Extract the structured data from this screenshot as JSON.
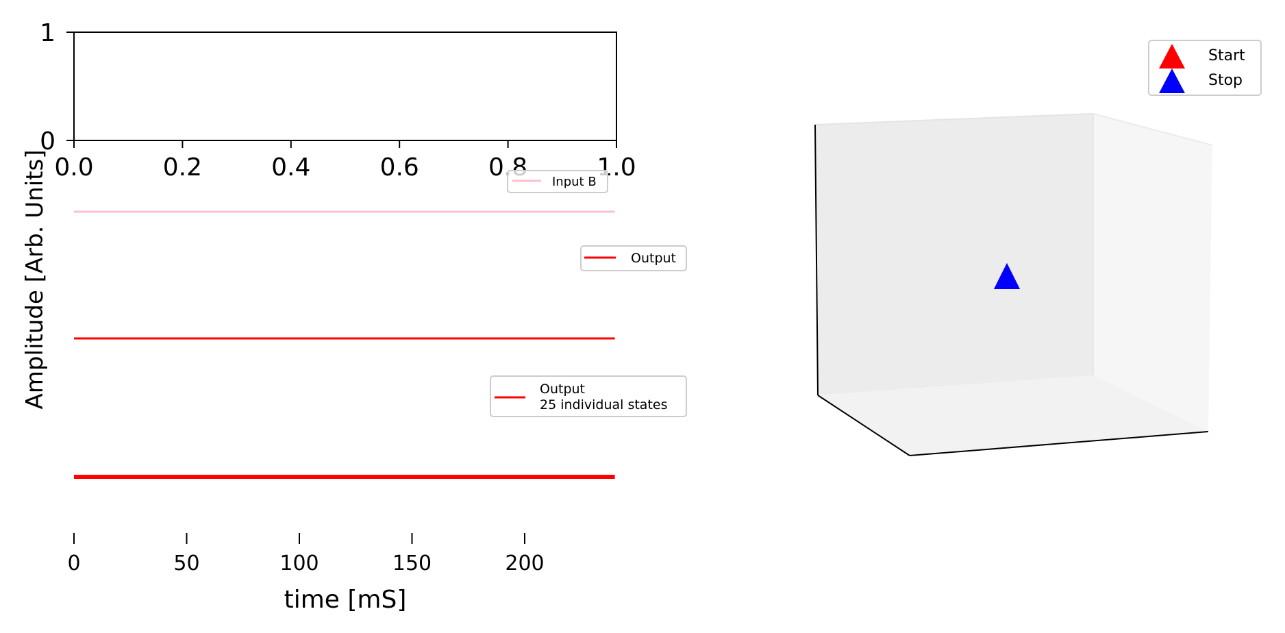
{
  "figure": {
    "ylabel_shared": "Amplitude [Arb. Units]",
    "xlabel_bottom": "time [mS]"
  },
  "chart_data": [
    {
      "type": "line",
      "panel": "top-empty-axes",
      "xlim": [
        0.0,
        1.0
      ],
      "ylim": [
        0,
        1
      ],
      "x_ticks": [
        "0.0",
        "0.2",
        "0.4",
        "0.6",
        "0.8",
        "1.0"
      ],
      "y_ticks": [
        "0",
        "1"
      ],
      "series": []
    },
    {
      "type": "line",
      "panel": "input-b",
      "series": [
        {
          "name": "Input B",
          "color": "#ffc0cb",
          "x": [
            0,
            240
          ],
          "y": [
            0,
            0
          ]
        }
      ],
      "legend": "top-right",
      "axes_visible": false
    },
    {
      "type": "line",
      "panel": "output",
      "series": [
        {
          "name": "Output",
          "color": "#ff0000",
          "x": [
            0,
            240
          ],
          "y": [
            0,
            0
          ]
        }
      ],
      "legend": "top-right",
      "axes_visible": false
    },
    {
      "type": "line",
      "panel": "output-states",
      "xlim": [
        0,
        240
      ],
      "x_ticks": [
        "0",
        "50",
        "100",
        "150",
        "200"
      ],
      "x_tick_values": [
        0,
        50,
        100,
        150,
        200
      ],
      "series": [
        {
          "name": "Output\n25 individual states",
          "legend_lines": [
            "Output",
            "25 individual states"
          ],
          "color": "#ff0000",
          "x": [
            0,
            240
          ],
          "y": [
            0,
            0
          ]
        }
      ],
      "legend": "top-right",
      "xlabel": "time [mS]"
    },
    {
      "type": "scatter",
      "panel": "3d-trajectory",
      "projection": "3d",
      "axes_visible": false,
      "series": [
        {
          "name": "Start",
          "color": "#ff0000",
          "marker": "triangle",
          "points": [
            [
              0,
              0,
              0
            ]
          ]
        },
        {
          "name": "Stop",
          "color": "#0000ff",
          "marker": "triangle",
          "points": [
            [
              0,
              0,
              0
            ]
          ]
        }
      ],
      "legend": "top-right"
    }
  ]
}
